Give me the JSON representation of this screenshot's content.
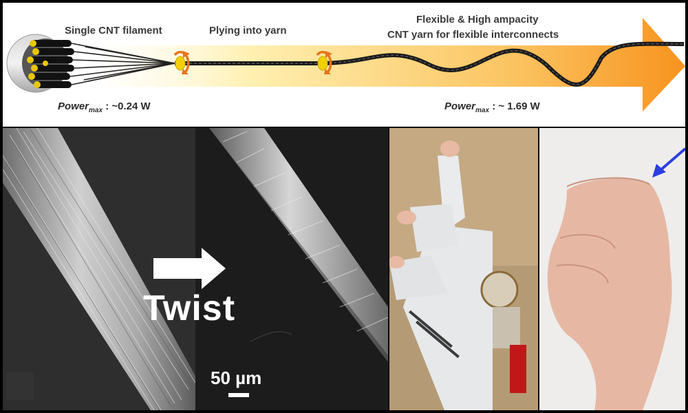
{
  "top": {
    "label_single": "Single CNT filament",
    "label_plying": "Plying into yarn",
    "label_flex_line1": "Flexible & High ampacity",
    "label_flex_line2": "CNT yarn for flexible interconnects",
    "power_left": {
      "prefix": "Power",
      "sub": "max",
      "value": " : ~0.24 W"
    },
    "power_right": {
      "prefix": "Power",
      "sub": "max",
      "value": " : ~ 1.69 W"
    },
    "colors": {
      "arrow_start": "#fff3b0",
      "arrow_end": "#f7931e",
      "rotation_arrow": "#e8731a",
      "ring": "#f2d000"
    }
  },
  "sem": {
    "twist_label": "Twist",
    "scale_label": "50 µm"
  },
  "photos": {
    "glove_icon": "sensor-glove-photo",
    "hand_icon": "bent-finger-photo",
    "pointer_color": "#2b3fe0"
  }
}
